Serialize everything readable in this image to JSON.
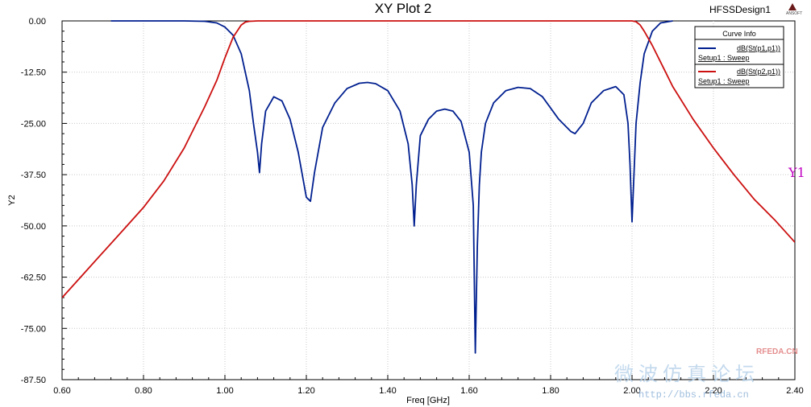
{
  "chart_data": {
    "type": "line",
    "title": "XY Plot 2",
    "design_name": "HFSSDesign1",
    "brand": "ANSOFT",
    "xlabel": "Freq [GHz]",
    "ylabel": "Y2",
    "xlim": [
      0.6,
      2.4
    ],
    "ylim": [
      -87.5,
      0
    ],
    "xticks": [
      0.6,
      0.8,
      1.0,
      1.2,
      1.4,
      1.6,
      1.8,
      2.0,
      2.2,
      2.4
    ],
    "xtick_labels": [
      "0.60",
      "0.80",
      "1.00",
      "1.20",
      "1.40",
      "1.60",
      "1.80",
      "2.00",
      "2.20",
      "2.40"
    ],
    "yticks": [
      0,
      -12.5,
      -25,
      -37.5,
      -50,
      -62.5,
      -75,
      -87.5
    ],
    "ytick_labels": [
      "0.00",
      "-12.50",
      "-25.00",
      "-37.50",
      "-50.00",
      "-62.50",
      "-75.00",
      "-87.50"
    ],
    "grid": true,
    "legend": {
      "title": "Curve Info",
      "placement": "top-right",
      "entries": [
        {
          "name": "dB(St(p1,p1))",
          "setup": "Setup1 : Sweep",
          "color": "#001f8f"
        },
        {
          "name": "dB(St(p2,p1))",
          "setup": "Setup1 : Sweep",
          "color": "#cc1010"
        }
      ]
    },
    "marker_label": "Y1",
    "series": [
      {
        "name": "dB(St(p1,p1))",
        "color": "#001f8f",
        "x": [
          0.72,
          0.9,
          0.95,
          0.98,
          1.0,
          1.02,
          1.04,
          1.06,
          1.07,
          1.08,
          1.085,
          1.09,
          1.1,
          1.12,
          1.14,
          1.16,
          1.18,
          1.2,
          1.21,
          1.22,
          1.24,
          1.27,
          1.3,
          1.33,
          1.35,
          1.37,
          1.4,
          1.43,
          1.45,
          1.46,
          1.465,
          1.47,
          1.48,
          1.5,
          1.52,
          1.54,
          1.56,
          1.58,
          1.6,
          1.61,
          1.615,
          1.62,
          1.625,
          1.63,
          1.64,
          1.66,
          1.69,
          1.72,
          1.75,
          1.78,
          1.82,
          1.85,
          1.86,
          1.88,
          1.9,
          1.93,
          1.96,
          1.98,
          1.99,
          1.995,
          2.0,
          2.005,
          2.01,
          2.02,
          2.03,
          2.05,
          2.07,
          2.1
        ],
        "y": [
          0,
          0,
          -0.1,
          -0.5,
          -1.5,
          -3.5,
          -8,
          -17,
          -25,
          -32,
          -37,
          -30,
          -22,
          -18.5,
          -19.5,
          -24,
          -32,
          -43,
          -44,
          -37,
          -26,
          -20,
          -16.5,
          -15.2,
          -15,
          -15.3,
          -17,
          -22,
          -30,
          -40,
          -50,
          -40,
          -28,
          -24,
          -22,
          -21.5,
          -22,
          -24.5,
          -32,
          -45,
          -81,
          -55,
          -40,
          -32,
          -25,
          -20,
          -17,
          -16.2,
          -16.5,
          -18.5,
          -24,
          -27,
          -27.5,
          -25,
          -20,
          -17,
          -16,
          -18,
          -25,
          -35,
          -49,
          -37,
          -25,
          -15,
          -8,
          -2.5,
          -0.5,
          0
        ]
      },
      {
        "name": "dB(St(p2,p1))",
        "color": "#cc1010",
        "x": [
          0.6,
          0.65,
          0.7,
          0.75,
          0.8,
          0.85,
          0.9,
          0.95,
          0.98,
          1.0,
          1.02,
          1.04,
          1.05,
          1.06,
          1.08,
          1.1,
          1.9,
          1.95,
          1.98,
          2.0,
          2.01,
          2.02,
          2.03,
          2.05,
          2.08,
          2.1,
          2.15,
          2.2,
          2.25,
          2.3,
          2.35,
          2.4
        ],
        "y": [
          -67.5,
          -62,
          -56.5,
          -51,
          -45.5,
          -39,
          -31,
          -21,
          -14.5,
          -9,
          -4,
          -1,
          -0.3,
          -0.1,
          0,
          0,
          0,
          0,
          0,
          0,
          -0.2,
          -1,
          -2.5,
          -6,
          -12,
          -16,
          -24,
          -31,
          -37.5,
          -43.5,
          -48.5,
          -54
        ]
      }
    ]
  },
  "watermark": {
    "chinese": "微波仿真论坛",
    "url": "http://bbs.rfeda.cn",
    "site": "RFEDA.CN"
  }
}
